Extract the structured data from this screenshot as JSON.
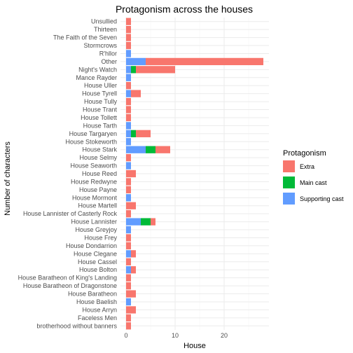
{
  "chart_data": {
    "type": "bar",
    "orientation": "horizontal",
    "stacked": true,
    "title": "Protagonism across the houses",
    "xlabel": "House",
    "ylabel": "Number of characters",
    "xlim": [
      0,
      28
    ],
    "xticks": [
      0,
      10,
      20
    ],
    "grid": true,
    "legend_position": "right",
    "legend_title": "Protagonism",
    "categories": [
      "Unsullied",
      "Thirteen",
      "The Faith of the Seven",
      "Stormcrows",
      "R'hllor",
      "Other",
      "Night's Watch",
      "Mance Rayder",
      "House Uller",
      "House Tyrell",
      "House Tully",
      "House Trant",
      "House Tollett",
      "House Tarth",
      "House Targaryen",
      "House Stokeworth",
      "House Stark",
      "House Selmy",
      "House Seaworth",
      "House Reed",
      "House Redwyne",
      "House Payne",
      "House Mormont",
      "House Martell",
      "House Lannister of Casterly Rock",
      "House Lannister",
      "House Greyjoy",
      "House Frey",
      "House Dondarrion",
      "House Clegane",
      "House Cassel",
      "House Bolton",
      "House Baratheon of King's Landing",
      "House Baratheon of Dragonstone",
      "House Baratheon",
      "House Baelish",
      "House Arryn",
      "Faceless Men",
      "brotherhood without banners"
    ],
    "series": [
      {
        "name": "Supporting cast",
        "color": "#619CFF",
        "values": [
          0,
          0,
          0,
          0,
          1,
          4,
          1,
          1,
          0,
          1,
          0,
          0,
          0,
          1,
          1,
          1,
          4,
          0,
          1,
          0,
          0,
          0,
          1,
          0,
          0,
          3,
          1,
          0,
          0,
          1,
          0,
          1,
          0,
          0,
          0,
          1,
          0,
          0,
          0
        ]
      },
      {
        "name": "Main cast",
        "color": "#00BA38",
        "values": [
          0,
          0,
          0,
          0,
          0,
          0,
          1,
          0,
          0,
          0,
          0,
          0,
          0,
          0,
          1,
          0,
          2,
          0,
          0,
          0,
          0,
          0,
          0,
          0,
          0,
          2,
          0,
          0,
          0,
          0,
          0,
          0,
          0,
          0,
          0,
          0,
          0,
          0,
          0
        ]
      },
      {
        "name": "Extra",
        "color": "#F8766D",
        "values": [
          1,
          1,
          1,
          1,
          0,
          24,
          8,
          0,
          1,
          2,
          1,
          1,
          1,
          0,
          3,
          0,
          3,
          1,
          0,
          2,
          1,
          1,
          0,
          2,
          1,
          1,
          0,
          1,
          1,
          1,
          1,
          1,
          1,
          1,
          2,
          0,
          2,
          1,
          1
        ]
      }
    ],
    "legend_order": [
      "Extra",
      "Main cast",
      "Supporting cast"
    ]
  }
}
